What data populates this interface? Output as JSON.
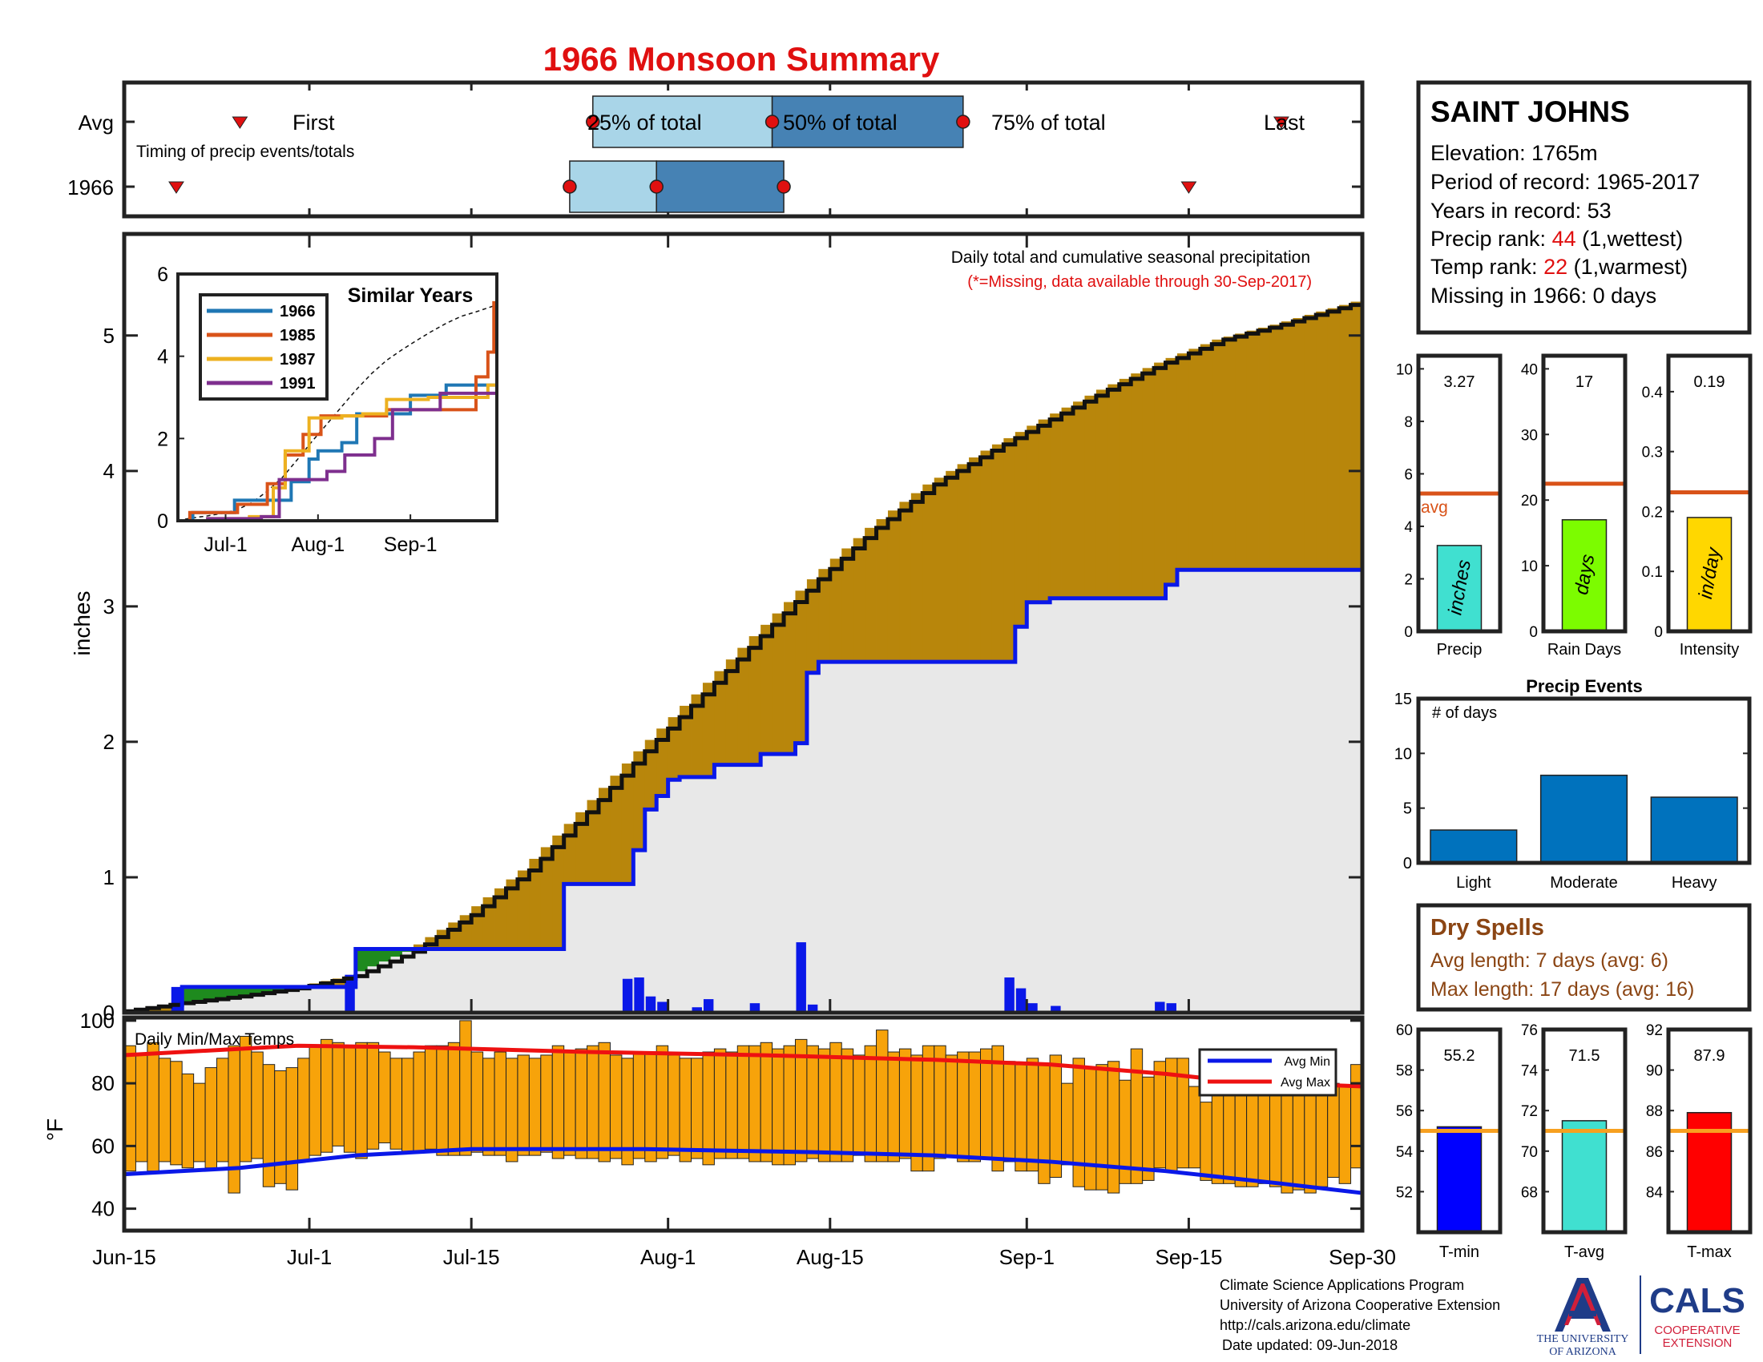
{
  "title": "1966 Monsoon Summary",
  "colors": {
    "title": "#e01010",
    "red": "#e01010",
    "dry": "#8b4513",
    "frame": "#222222",
    "cumFill": "#b8860b",
    "greenFill": "#1e8a1e",
    "avgFill": "#e8e8e8",
    "blue": "#0a18e8",
    "orange": "#f7a30a",
    "avgMax": "#ee1111",
    "avgMin": "#0a18e8",
    "light": "#a9d5e8",
    "dark": "#4682b4"
  },
  "station": {
    "name": "SAINT JOHNS",
    "elevation": "Elevation: 1765m",
    "period": "Period of record: 1965-2017",
    "years": "Years in record: 53",
    "precip_rank_label": "Precip rank: ",
    "precip_rank_value": "44",
    "precip_rank_note": " (1,wettest)",
    "temp_rank_label": "Temp rank: ",
    "temp_rank_value": "22",
    "temp_rank_note": " (1,warmest)",
    "missing": "Missing in 1966: 0 days"
  },
  "dry_spells": {
    "title": "Dry Spells",
    "avg_length": "Avg length: 7 days (avg: 6)",
    "max_length": "Max length: 17 days (avg: 16)"
  },
  "footer": {
    "line1": "Climate Science Applications Program",
    "line2": "University of Arizona Cooperative Extension",
    "line3": "http://cals.arizona.edu/climate",
    "line4": "Date updated: 09-Jun-2018",
    "logo_ua_1": "THE UNIVERSITY",
    "logo_ua_2": "OF ARIZONA",
    "logo_cals": "CALS",
    "logo_coop_1": "COOPERATIVE",
    "logo_coop_2": "EXTENSION"
  },
  "chart_data": [
    {
      "id": "timing",
      "type": "range",
      "rows": [
        "Avg",
        "1966"
      ],
      "annotation": "Timing of precip events/totals",
      "labels": {
        "first": "First",
        "p25": "25% of total",
        "p50": "50% of total",
        "p75": "75% of total",
        "last": "Last"
      },
      "avg": {
        "first": 10,
        "p25": 40.5,
        "p50": 56,
        "p75": 72.5,
        "last": 100
      },
      "year": {
        "first": 4.5,
        "p25": 38.5,
        "p50": 46,
        "p75": 57,
        "last": 92
      }
    },
    {
      "id": "cumulative",
      "type": "area",
      "ylabel": "inches",
      "ylim": [
        0,
        5.75
      ],
      "yticks": [
        0,
        1,
        2,
        3,
        4,
        5
      ],
      "xlim": [
        0,
        107
      ],
      "x_ticks": [
        {
          "x": 0,
          "label": "Jun-15"
        },
        {
          "x": 16,
          "label": "Jul-1"
        },
        {
          "x": 30,
          "label": "Jul-15"
        },
        {
          "x": 47,
          "label": "Aug-1"
        },
        {
          "x": 61,
          "label": "Aug-15"
        },
        {
          "x": 78,
          "label": "Sep-1"
        },
        {
          "x": 92,
          "label": "Sep-15"
        },
        {
          "x": 107,
          "label": "Sep-30"
        }
      ],
      "annotation_1": "Daily total and cumulative seasonal precipitation",
      "annotation_2": "(*=Missing, data available through 30-Sep-2017)",
      "avg_cumulative": [
        [
          0,
          0.01
        ],
        [
          5,
          0.07
        ],
        [
          10,
          0.12
        ],
        [
          15,
          0.18
        ],
        [
          20,
          0.27
        ],
        [
          25,
          0.45
        ],
        [
          30,
          0.72
        ],
        [
          35,
          1.05
        ],
        [
          40,
          1.48
        ],
        [
          45,
          1.93
        ],
        [
          50,
          2.35
        ],
        [
          55,
          2.78
        ],
        [
          60,
          3.2
        ],
        [
          65,
          3.58
        ],
        [
          70,
          3.9
        ],
        [
          75,
          4.15
        ],
        [
          80,
          4.38
        ],
        [
          85,
          4.6
        ],
        [
          90,
          4.8
        ],
        [
          95,
          4.97
        ],
        [
          100,
          5.08
        ],
        [
          107,
          5.25
        ]
      ],
      "year_cumulative": [
        [
          0,
          0.0
        ],
        [
          4,
          0.0
        ],
        [
          5,
          0.19
        ],
        [
          19,
          0.19
        ],
        [
          20,
          0.47
        ],
        [
          37,
          0.47
        ],
        [
          38,
          0.95
        ],
        [
          43,
          0.95
        ],
        [
          44,
          1.2
        ],
        [
          45,
          1.5
        ],
        [
          46,
          1.6
        ],
        [
          47,
          1.72
        ],
        [
          48,
          1.74
        ],
        [
          50,
          1.74
        ],
        [
          51,
          1.83
        ],
        [
          54,
          1.83
        ],
        [
          55,
          1.91
        ],
        [
          57,
          1.91
        ],
        [
          58,
          1.99
        ],
        [
          59,
          2.51
        ],
        [
          60,
          2.59
        ],
        [
          76,
          2.59
        ],
        [
          77,
          2.85
        ],
        [
          78,
          3.03
        ],
        [
          80,
          3.06
        ],
        [
          89,
          3.06
        ],
        [
          90,
          3.16
        ],
        [
          91,
          3.27
        ],
        [
          107,
          3.27
        ]
      ],
      "daily_bars": [
        [
          4,
          0.19
        ],
        [
          19,
          0.28
        ],
        [
          43,
          0.25
        ],
        [
          44,
          0.26
        ],
        [
          45,
          0.12
        ],
        [
          46,
          0.08
        ],
        [
          49,
          0.04
        ],
        [
          50,
          0.1
        ],
        [
          54,
          0.07
        ],
        [
          58,
          0.52
        ],
        [
          59,
          0.06
        ],
        [
          76,
          0.26
        ],
        [
          77,
          0.18
        ],
        [
          78,
          0.07
        ],
        [
          80,
          0.05
        ],
        [
          89,
          0.08
        ],
        [
          90,
          0.07
        ]
      ]
    },
    {
      "id": "similar_years",
      "type": "line",
      "title": "Similar Years",
      "ylim": [
        0,
        6
      ],
      "yticks": [
        0,
        2,
        4,
        6
      ],
      "x_ticks": [
        {
          "x": 16,
          "label": "Jul-1"
        },
        {
          "x": 47,
          "label": "Aug-1"
        },
        {
          "x": 78,
          "label": "Sep-1"
        }
      ],
      "series": [
        {
          "name": "1966",
          "color": "#1f77b4",
          "points": [
            [
              0,
              0
            ],
            [
              5,
              0.2
            ],
            [
              19,
              0.5
            ],
            [
              37,
              0.5
            ],
            [
              38,
              0.95
            ],
            [
              44,
              1.5
            ],
            [
              47,
              1.7
            ],
            [
              55,
              1.9
            ],
            [
              60,
              2.6
            ],
            [
              76,
              2.6
            ],
            [
              78,
              3.05
            ],
            [
              90,
              3.3
            ],
            [
              107,
              3.3
            ]
          ]
        },
        {
          "name": "1985",
          "color": "#d95319",
          "points": [
            [
              0,
              0
            ],
            [
              4,
              0.2
            ],
            [
              20,
              0.4
            ],
            [
              30,
              0.9
            ],
            [
              36,
              1.6
            ],
            [
              42,
              2.1
            ],
            [
              48,
              2.55
            ],
            [
              58,
              2.55
            ],
            [
              70,
              2.7
            ],
            [
              80,
              2.7
            ],
            [
              93,
              2.7
            ],
            [
              100,
              3.5
            ],
            [
              104,
              4.1
            ],
            [
              106,
              5.3
            ],
            [
              107,
              5.3
            ]
          ]
        },
        {
          "name": "1987",
          "color": "#edb120",
          "points": [
            [
              0,
              0
            ],
            [
              10,
              0.05
            ],
            [
              24,
              0.1
            ],
            [
              32,
              0.8
            ],
            [
              36,
              1.7
            ],
            [
              44,
              2.5
            ],
            [
              55,
              2.55
            ],
            [
              62,
              2.6
            ],
            [
              70,
              2.95
            ],
            [
              84,
              3.0
            ],
            [
              100,
              3.0
            ],
            [
              104,
              3.3
            ],
            [
              107,
              3.3
            ]
          ]
        },
        {
          "name": "1991",
          "color": "#7e2f8e",
          "points": [
            [
              0,
              0
            ],
            [
              10,
              0.05
            ],
            [
              28,
              0.1
            ],
            [
              34,
              1.0
            ],
            [
              50,
              1.2
            ],
            [
              56,
              1.6
            ],
            [
              66,
              2.0
            ],
            [
              72,
              2.7
            ],
            [
              88,
              3.1
            ],
            [
              107,
              3.1
            ]
          ]
        }
      ],
      "avg_dashed": true
    },
    {
      "id": "temps",
      "type": "bar",
      "annotation": "Daily Min/Max Temps",
      "ylabel": "°F",
      "ylim": [
        33,
        101
      ],
      "yticks": [
        40,
        60,
        80,
        100
      ],
      "legend": [
        "Avg Min",
        "Avg Max"
      ],
      "legend_position": "top-right",
      "avg_max": [
        [
          0,
          89
        ],
        [
          10,
          91
        ],
        [
          15,
          92
        ],
        [
          25,
          91.5
        ],
        [
          40,
          90
        ],
        [
          55,
          89
        ],
        [
          70,
          87.5
        ],
        [
          80,
          86
        ],
        [
          90,
          83
        ],
        [
          95,
          81
        ],
        [
          100,
          80
        ],
        [
          107,
          79
        ]
      ],
      "avg_min": [
        [
          0,
          51
        ],
        [
          10,
          53
        ],
        [
          20,
          57
        ],
        [
          30,
          59
        ],
        [
          45,
          59
        ],
        [
          60,
          58
        ],
        [
          70,
          57
        ],
        [
          80,
          55
        ],
        [
          90,
          52
        ],
        [
          100,
          48
        ],
        [
          107,
          45
        ]
      ],
      "daily_max": [
        92,
        89,
        93,
        88,
        87,
        83,
        80,
        85,
        88,
        92,
        95,
        90,
        86,
        84,
        85,
        88,
        92,
        94,
        93,
        92,
        93,
        93,
        90,
        88,
        88,
        90,
        92,
        92,
        93,
        100,
        90,
        88,
        90,
        88,
        89,
        88,
        89,
        92,
        90,
        91,
        92,
        93,
        89,
        88,
        90,
        90,
        92,
        89,
        88,
        88,
        90,
        91,
        90,
        92,
        92,
        93,
        91,
        92,
        94,
        92,
        91,
        93,
        91,
        89,
        92,
        97,
        90,
        91,
        89,
        92,
        92,
        89,
        90,
        90,
        91,
        92,
        87,
        86,
        88,
        86,
        89,
        80,
        88,
        85,
        86,
        87,
        81,
        91,
        82,
        87,
        88,
        88,
        79,
        74,
        78,
        85,
        84,
        83,
        82,
        81,
        84,
        84,
        82,
        82,
        80,
        79,
        86
      ],
      "daily_min": [
        52,
        55,
        52,
        55,
        54,
        53,
        55,
        53,
        55,
        45,
        55,
        56,
        47,
        48,
        46,
        55,
        57,
        58,
        60,
        58,
        56,
        59,
        61,
        59,
        58,
        58,
        59,
        57,
        57,
        57,
        58,
        57,
        57,
        55,
        57,
        57,
        58,
        56,
        57,
        56,
        56,
        55,
        56,
        54,
        56,
        55,
        56,
        57,
        55,
        56,
        54,
        56,
        56,
        56,
        55,
        55,
        54,
        54,
        55,
        56,
        55,
        55,
        55,
        57,
        55,
        55,
        55,
        56,
        52,
        52,
        56,
        57,
        55,
        55,
        56,
        52,
        55,
        52,
        52,
        48,
        50,
        54,
        47,
        46,
        46,
        45,
        48,
        48,
        49,
        53,
        52,
        53,
        53,
        49,
        48,
        48,
        47,
        47,
        48,
        47,
        45,
        46,
        45,
        47,
        50,
        48,
        53
      ]
    },
    {
      "id": "totals",
      "type": "bar",
      "panels": [
        {
          "category": "Precip",
          "unit": "inches",
          "value": 3.27,
          "value_label": "3.27",
          "avg": 5.25,
          "avg_label": "avg",
          "ylim": [
            0,
            10.5
          ],
          "yticks": [
            0,
            2,
            4,
            6,
            8,
            10
          ],
          "color": "#40e0d0"
        },
        {
          "category": "Rain Days",
          "unit": "days",
          "value": 17,
          "value_label": "17",
          "avg": 22.5,
          "ylim": [
            0,
            42
          ],
          "yticks": [
            0,
            10,
            20,
            30,
            40
          ],
          "color": "#7cfc00"
        },
        {
          "category": "Intensity",
          "unit": "in/day",
          "value": 0.19,
          "value_label": "0.19",
          "avg": 0.232,
          "ylim": [
            0,
            0.46
          ],
          "yticks": [
            0,
            0.1,
            0.2,
            0.3,
            0.4
          ],
          "color": "#ffd700"
        }
      ]
    },
    {
      "id": "precip_events",
      "type": "bar",
      "title": "Precip Events",
      "annotation": "# of days",
      "categories": [
        "Light",
        "Moderate",
        "Heavy"
      ],
      "values": [
        3,
        8,
        6
      ],
      "ylim": [
        0,
        15
      ],
      "yticks": [
        0,
        5,
        10,
        15
      ],
      "color": "#0072bd"
    },
    {
      "id": "temp_totals",
      "type": "bar",
      "panels": [
        {
          "category": "T-min",
          "value": 55.2,
          "value_label": "55.2",
          "avg": 55.0,
          "ylim": [
            50,
            60
          ],
          "yticks": [
            52,
            54,
            56,
            58,
            60
          ],
          "color": "#0000ff"
        },
        {
          "category": "T-avg",
          "value": 71.5,
          "value_label": "71.5",
          "avg": 71.0,
          "ylim": [
            66,
            76
          ],
          "yticks": [
            68,
            70,
            72,
            74,
            76
          ],
          "color": "#40e0d0"
        },
        {
          "category": "T-max",
          "value": 87.9,
          "value_label": "87.9",
          "avg": 87.0,
          "ylim": [
            82,
            92
          ],
          "yticks": [
            84,
            86,
            88,
            90,
            92
          ],
          "color": "#ff0000"
        }
      ]
    }
  ]
}
